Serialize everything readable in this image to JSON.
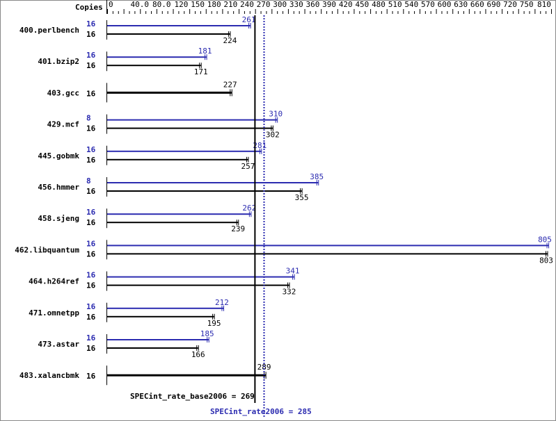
{
  "chart_data": {
    "type": "bar",
    "orientation": "horizontal",
    "header_label": "Copies",
    "xlim": [
      0,
      810
    ],
    "tick_labels": [
      "0",
      "40.0",
      "80.0",
      "120",
      "150",
      "180",
      "210",
      "240",
      "270",
      "300",
      "330",
      "360",
      "390",
      "420",
      "450",
      "480",
      "510",
      "540",
      "570",
      "600",
      "630",
      "660",
      "690",
      "720",
      "750",
      "810"
    ],
    "colors": {
      "peak": "#2b2bb0",
      "base": "#000000"
    },
    "benchmarks": [
      {
        "name": "400.perlbench",
        "peak_copies": "16",
        "peak": 261,
        "base_copies": "16",
        "base": 224
      },
      {
        "name": "401.bzip2",
        "peak_copies": "16",
        "peak": 181,
        "base_copies": "16",
        "base": 171
      },
      {
        "name": "403.gcc",
        "base_copies": "16",
        "base": 227,
        "single": true
      },
      {
        "name": "429.mcf",
        "peak_copies": "8",
        "peak": 310,
        "base_copies": "16",
        "base": 302
      },
      {
        "name": "445.gobmk",
        "peak_copies": "16",
        "peak": 281,
        "base_copies": "16",
        "base": 257
      },
      {
        "name": "456.hmmer",
        "peak_copies": "8",
        "peak": 385,
        "base_copies": "16",
        "base": 355
      },
      {
        "name": "458.sjeng",
        "peak_copies": "16",
        "peak": 262,
        "base_copies": "16",
        "base": 239
      },
      {
        "name": "462.libquantum",
        "peak_copies": "16",
        "peak": 805,
        "base_copies": "16",
        "base": 803
      },
      {
        "name": "464.h264ref",
        "peak_copies": "16",
        "peak": 341,
        "base_copies": "16",
        "base": 332
      },
      {
        "name": "471.omnetpp",
        "peak_copies": "16",
        "peak": 212,
        "base_copies": "16",
        "base": 195
      },
      {
        "name": "473.astar",
        "peak_copies": "16",
        "peak": 185,
        "base_copies": "16",
        "base": 166
      },
      {
        "name": "483.xalancbmk",
        "base_copies": "16",
        "base": 289,
        "single": true
      }
    ],
    "base_mean": 269,
    "peak_mean": 285,
    "base_mean_label": "SPECint_rate_base2006 = 269",
    "peak_mean_label": "SPECint_rate2006 = 285"
  }
}
